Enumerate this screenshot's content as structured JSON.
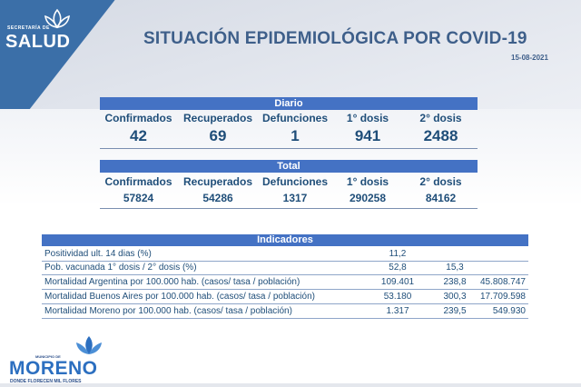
{
  "header": {
    "brand_small": "SECRETARÍA DE",
    "brand": "SALUD",
    "title": "SITUACIÓN EPIDEMIOLÓGICA POR COVID-19",
    "date": "15-08-2021"
  },
  "diario": {
    "title": "Diario",
    "labels": [
      "Confirmados",
      "Recuperados",
      "Defunciones",
      "1° dosis",
      "2° dosis"
    ],
    "values": [
      "42",
      "69",
      "1",
      "941",
      "2488"
    ]
  },
  "total": {
    "title": "Total",
    "labels": [
      "Confirmados",
      "Recuperados",
      "Defunciones",
      "1° dosis",
      "2° dosis"
    ],
    "values": [
      "57824",
      "54286",
      "1317",
      "290258",
      "84162"
    ]
  },
  "indicadores": {
    "title": "Indicadores",
    "rows": [
      {
        "label": "Positividad ult. 14 dias (%)",
        "v1": "11,2",
        "v2": "",
        "v3": ""
      },
      {
        "label": "Pob. vacunada 1° dosis / 2° dosis (%)",
        "v1": "52,8",
        "v2": "15,3",
        "v3": ""
      },
      {
        "label": "Mortalidad Argentina por 100.000 hab. (casos/ tasa / población)",
        "v1": "109.401",
        "v2": "238,8",
        "v3": "45.808.747"
      },
      {
        "label": "Mortalidad Buenos Aires por 100.000 hab. (casos/ tasa / población)",
        "v1": "53.180",
        "v2": "300,3",
        "v3": "17.709.598"
      },
      {
        "label": "Mortalidad Moreno por 100.000 hab. (casos/ tasa / población)",
        "v1": "1.317",
        "v2": "239,5",
        "v3": "549.930"
      }
    ]
  },
  "footer": {
    "municipio": "MUNICIPIO DE",
    "name": "MORENO",
    "tagline": "DONDE FLORECEN MIL FLORES"
  },
  "colors": {
    "header_blue": "#3b6fa8",
    "bar_blue": "#4472c4",
    "text_navy": "#1f4e79",
    "title_blue": "#3e5f8a"
  },
  "icons": [
    "salud-lotus-icon",
    "moreno-flower-icon"
  ]
}
